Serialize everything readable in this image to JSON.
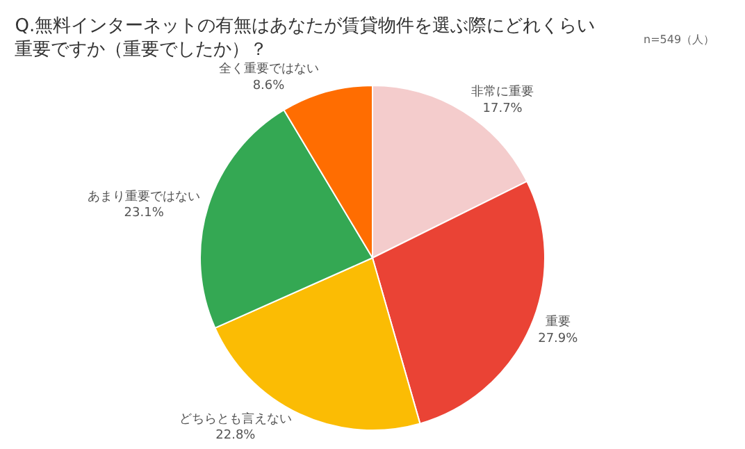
{
  "chart_data": {
    "type": "pie",
    "title": "Q.無料インターネットの有無はあなたが賃貸物件を選ぶ際にどれくらい重要ですか（重要でしたか）？",
    "annotations": [
      "n=549（人）"
    ],
    "categories": [
      "非常に重要",
      "重要",
      "どちらとも言えない",
      "あまり重要ではない",
      "全く重要ではない"
    ],
    "values": [
      17.7,
      27.9,
      22.8,
      23.1,
      8.6
    ],
    "value_labels": [
      "17.7%",
      "27.9%",
      "22.8%",
      "23.1%",
      "8.6%"
    ],
    "colors": [
      "#f4cccc",
      "#ea4335",
      "#fbbc04",
      "#34a853",
      "#ff6d01"
    ],
    "legend": false
  }
}
